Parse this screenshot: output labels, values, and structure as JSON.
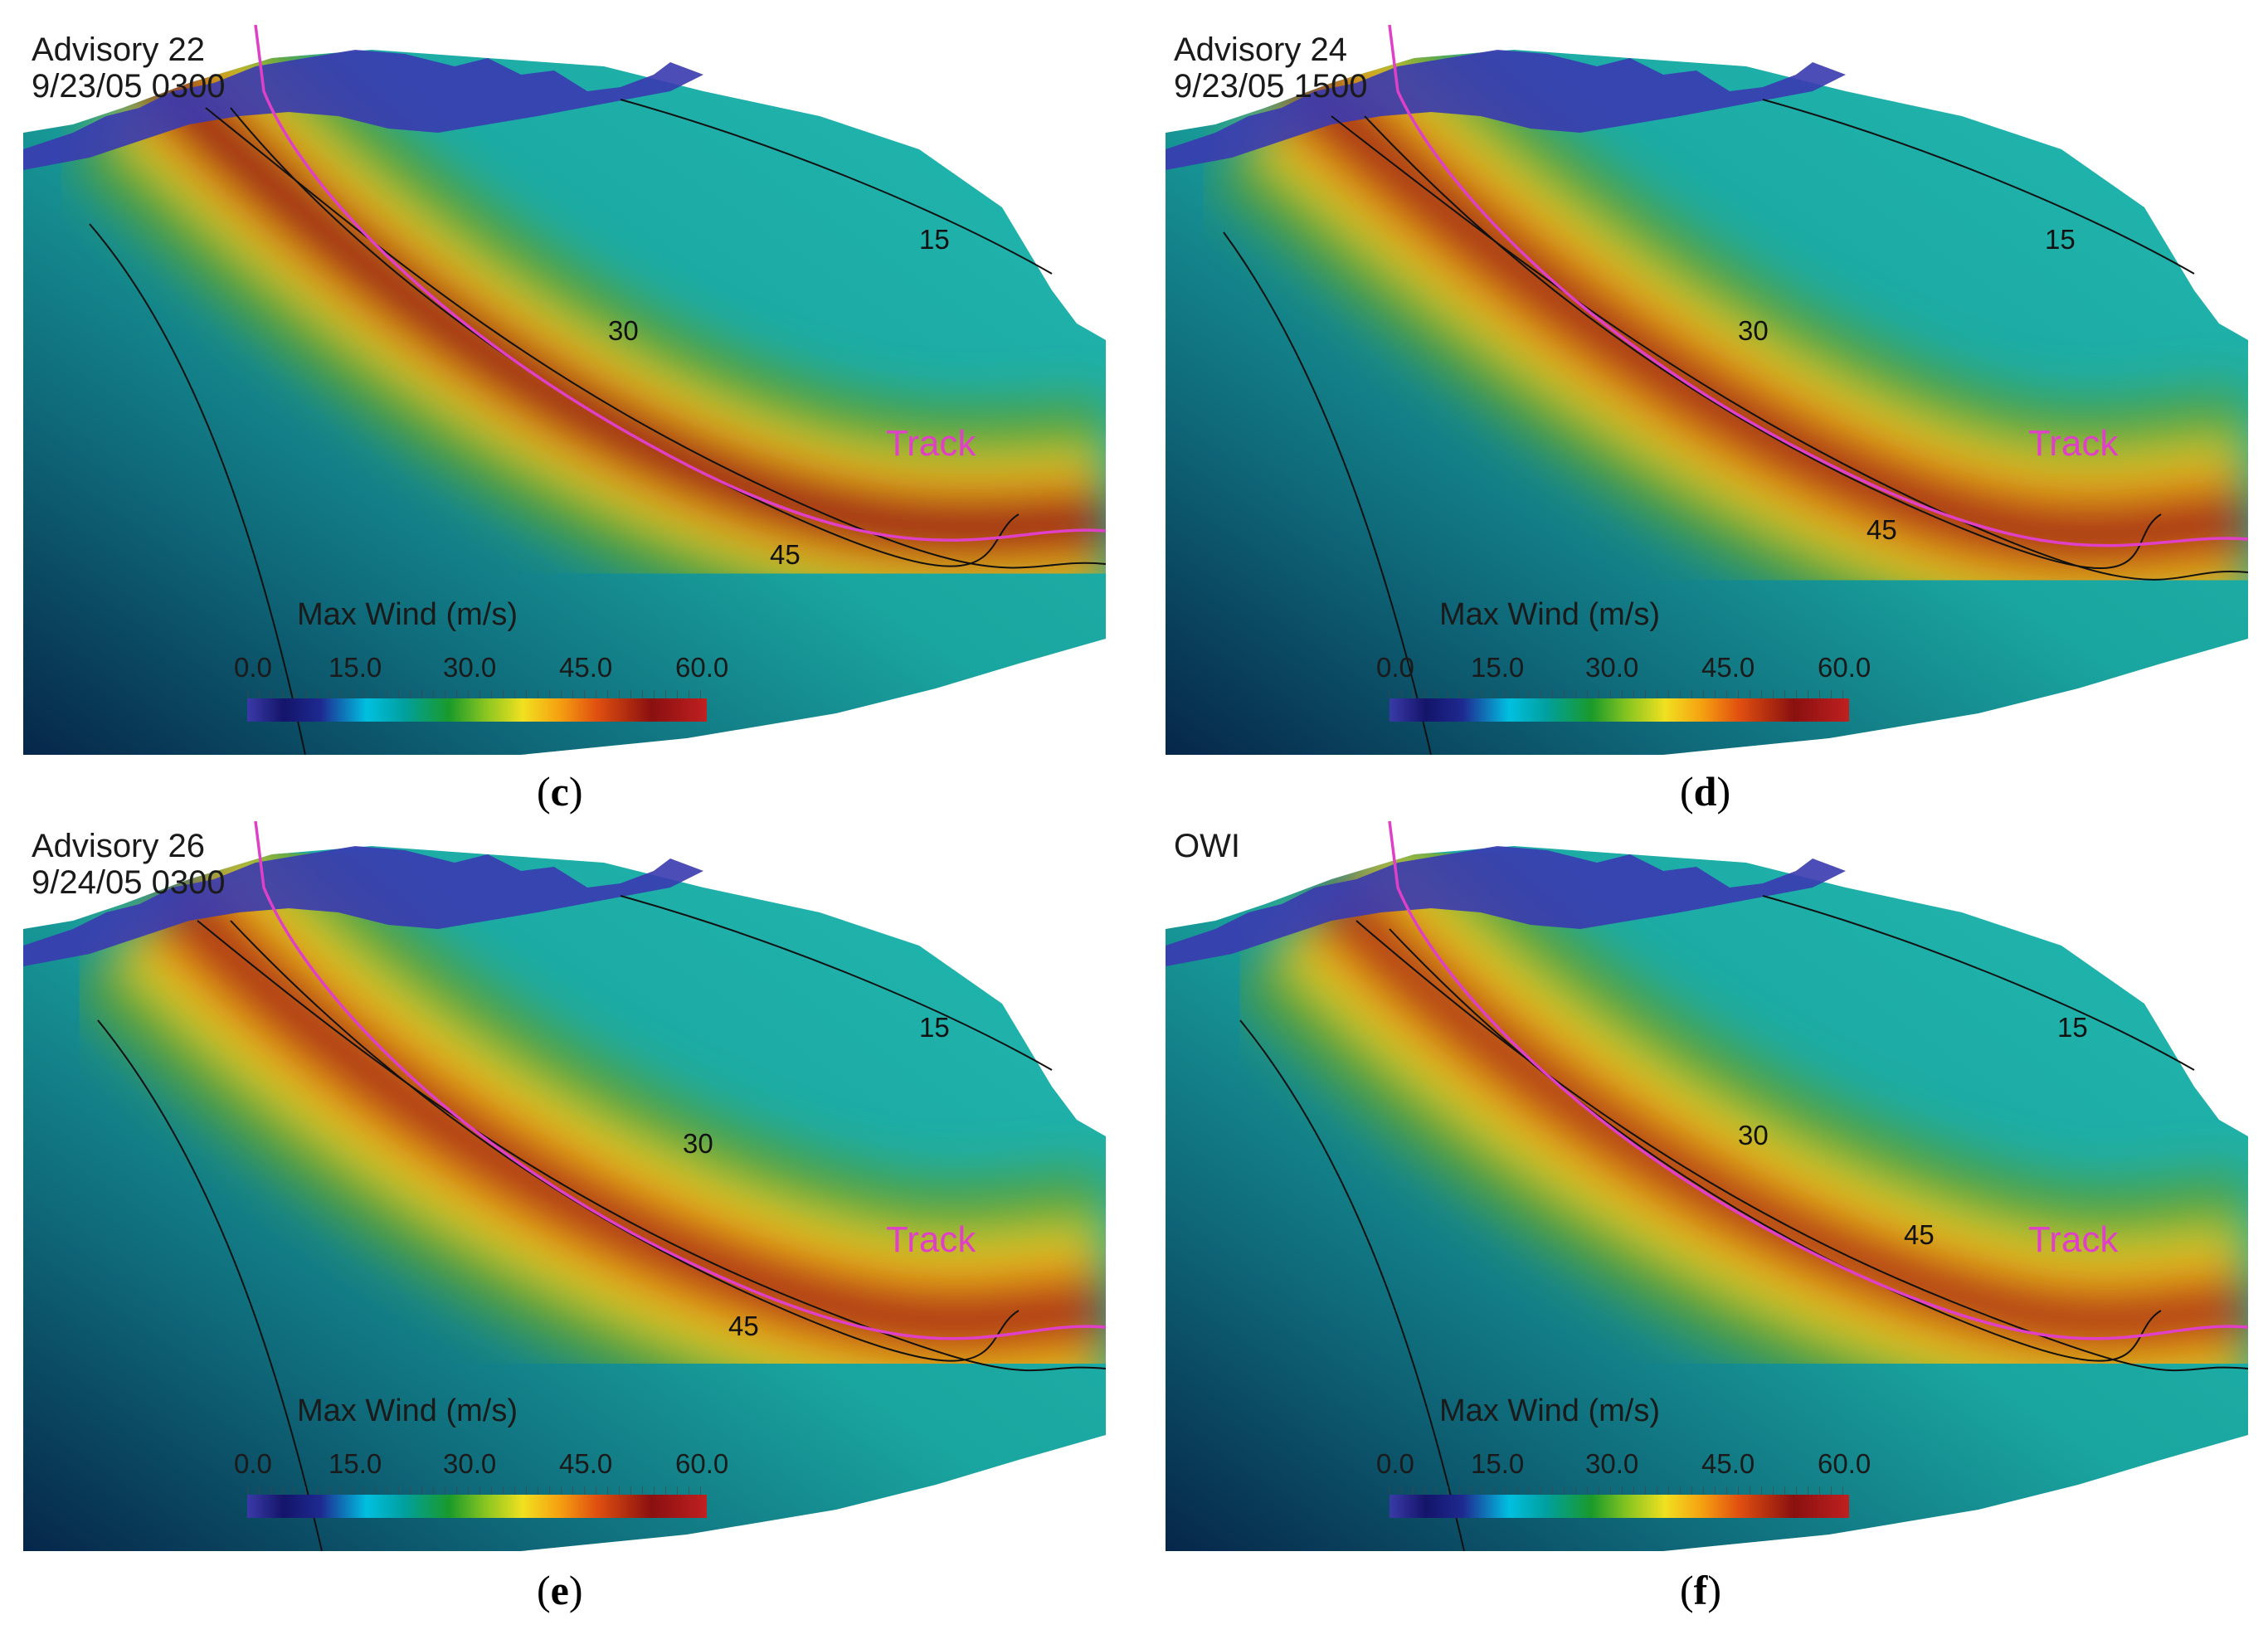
{
  "panels": [
    {
      "key": "c",
      "title_lines": [
        "Advisory 22",
        "9/23/05 0300"
      ],
      "caption_letter": "c",
      "contour_labels": [
        "15",
        "30",
        "45"
      ],
      "track_label": "Track"
    },
    {
      "key": "d",
      "title_lines": [
        "Advisory 24",
        "9/23/05 1500"
      ],
      "caption_letter": "d",
      "contour_labels": [
        "15",
        "30",
        "45"
      ],
      "track_label": "Track"
    },
    {
      "key": "e",
      "title_lines": [
        "Advisory 26",
        "9/24/05 0300"
      ],
      "caption_letter": "e",
      "contour_labels": [
        "15",
        "30",
        "45"
      ],
      "track_label": "Track"
    },
    {
      "key": "f",
      "title_lines": [
        "OWI"
      ],
      "caption_letter": "f",
      "contour_labels": [
        "15",
        "30",
        "45"
      ],
      "track_label": "Track"
    }
  ],
  "colorbar": {
    "title": "Max Wind  (m/s)",
    "ticks": [
      "0.0",
      "15.0",
      "30.0",
      "45.0",
      "60.0"
    ],
    "range": [
      0,
      60
    ]
  },
  "colors": {
    "track": "#e040c8",
    "land": "#3a3ab0",
    "open_water": "#1aa6a0",
    "deep_edge": "#06264a",
    "core_max": "#7a1010"
  },
  "caption_format": {
    "open": "(",
    "close": ")"
  }
}
